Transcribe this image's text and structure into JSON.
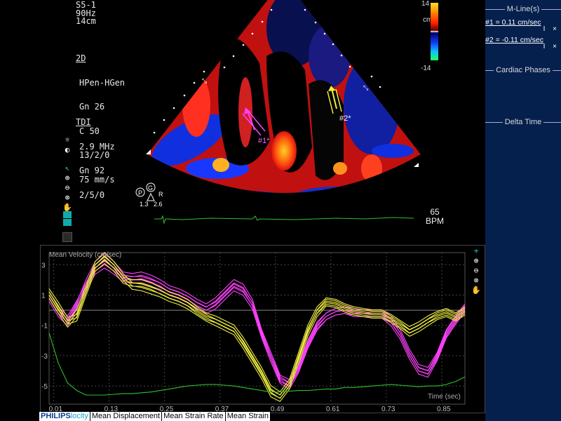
{
  "probe": {
    "transducer": "S5-1",
    "frame_rate": "90Hz",
    "depth": "14cm"
  },
  "twod": {
    "header": "2D",
    "mode": "HPen-HGen",
    "gain": "Gn 26",
    "compression": "C 50",
    "persist": "13/2/0",
    "sweep": "75 mm/s"
  },
  "tdi": {
    "header": "TDI",
    "freq": "2.9 MHz",
    "gain": "Gn 92",
    "filter": "2/5/0"
  },
  "color_scale": {
    "unit": "cm/s",
    "max": "14",
    "min": "-14"
  },
  "image_labels": {
    "roi1": "#1*",
    "roi2": "#2*"
  },
  "pgr": {
    "p": "P",
    "g": "G",
    "r": "R",
    "val1": "1.3",
    "val2": "2.6"
  },
  "heart_rate": {
    "value": "65",
    "unit": "BPM"
  },
  "tools": [
    {
      "name": "brightness-icon",
      "glyph": "☼"
    },
    {
      "name": "contrast-icon",
      "glyph": "◐"
    },
    {
      "name": "cursor-arrow-icon",
      "glyph": "↖"
    },
    {
      "name": "zoom-in-icon",
      "glyph": "⊕"
    },
    {
      "name": "zoom-out-icon",
      "glyph": "⊖"
    },
    {
      "name": "zoom-reset-icon",
      "glyph": "⊗"
    },
    {
      "name": "pan-hand-icon",
      "glyph": "✋"
    }
  ],
  "right_panel": {
    "mline_header": "M-Line(s)",
    "mlines": [
      {
        "label": "#1 = 0.11 cm/sec",
        "ctrl": "I ×"
      },
      {
        "label": "#2 = -0.11 cm/sec",
        "ctrl": "I ×"
      }
    ],
    "cardiac_header": "Cardiac Phases",
    "delta_header": "Delta Time"
  },
  "graph_tools": [
    "+",
    "⊕",
    "⊖",
    "⊗",
    "✋"
  ],
  "logo": {
    "brand": "PHILIPS",
    "product": "locity"
  },
  "tabs": [
    "Mean Displacement",
    "Mean Strain Rate",
    "Mean Strain"
  ],
  "chart_data": {
    "type": "line",
    "ylabel": "Mean Velocity (cm/sec)",
    "xlabel": "Time (sec)",
    "xlim": [
      0.0,
      0.9
    ],
    "ylim": [
      -6.2,
      3.8
    ],
    "x_ticks": [
      "0.01",
      "0.13",
      "0.25",
      "0.37",
      "0.49",
      "0.61",
      "0.73",
      "0.85"
    ],
    "y_ticks": [
      "3",
      "1",
      "-1",
      "-3",
      "-5"
    ],
    "colors": {
      "roi1": "#ff40ff",
      "roi2": "#f0f040",
      "ecg": "#30c030"
    },
    "x": [
      0.0,
      0.02,
      0.04,
      0.06,
      0.08,
      0.1,
      0.12,
      0.14,
      0.16,
      0.18,
      0.2,
      0.22,
      0.24,
      0.26,
      0.28,
      0.3,
      0.32,
      0.34,
      0.36,
      0.38,
      0.4,
      0.42,
      0.44,
      0.46,
      0.48,
      0.5,
      0.52,
      0.54,
      0.56,
      0.58,
      0.6,
      0.62,
      0.64,
      0.66,
      0.68,
      0.7,
      0.72,
      0.74,
      0.76,
      0.78,
      0.8,
      0.82,
      0.84,
      0.86,
      0.88,
      0.9
    ],
    "series": [
      {
        "values": [
          0.8,
          -0.2,
          -0.8,
          0.3,
          1.8,
          3.0,
          3.5,
          3.0,
          2.3,
          2.2,
          2.3,
          2.1,
          1.8,
          1.4,
          1.2,
          0.9,
          0.5,
          0.2,
          0.6,
          1.2,
          1.8,
          1.5,
          0.5,
          -1.5,
          -3.0,
          -4.5,
          -4.8,
          -3.8,
          -2.2,
          -1.0,
          -0.4,
          -0.1,
          0.0,
          -0.1,
          -0.2,
          -0.2,
          -0.2,
          -0.6,
          -1.5,
          -2.8,
          -3.8,
          -4.0,
          -3.0,
          -1.5,
          -0.6,
          0.2
        ]
      },
      {
        "values": [
          1.0,
          0.0,
          -0.6,
          0.4,
          1.6,
          2.6,
          3.0,
          2.6,
          2.1,
          2.0,
          2.0,
          1.8,
          1.6,
          1.2,
          1.0,
          0.7,
          0.3,
          0.0,
          0.3,
          0.9,
          1.5,
          1.2,
          0.3,
          -1.6,
          -3.2,
          -4.6,
          -5.0,
          -3.9,
          -2.3,
          -1.1,
          -0.4,
          -0.1,
          0.0,
          -0.2,
          -0.2,
          -0.3,
          -0.3,
          -0.8,
          -1.7,
          -3.0,
          -4.0,
          -4.2,
          -3.1,
          -1.6,
          -0.7,
          0.1
        ]
      },
      {
        "values": [
          1.2,
          0.3,
          -0.7,
          -0.5,
          1.2,
          2.8,
          3.3,
          2.8,
          2.0,
          1.8,
          1.8,
          1.6,
          1.3,
          1.0,
          0.8,
          0.5,
          0.0,
          -0.4,
          -0.6,
          -0.9,
          -1.2,
          -2.0,
          -3.0,
          -4.0,
          -5.2,
          -5.6,
          -4.8,
          -3.0,
          -1.2,
          0.0,
          0.6,
          0.5,
          0.2,
          0.0,
          -0.1,
          -0.2,
          -0.2,
          -0.5,
          -0.9,
          -1.3,
          -1.0,
          -0.6,
          -0.3,
          -0.1,
          -0.4,
          0.0
        ]
      },
      {
        "values": [
          1.0,
          0.0,
          -0.9,
          -0.2,
          1.4,
          3.0,
          3.6,
          3.0,
          2.2,
          1.6,
          1.5,
          1.3,
          1.1,
          0.8,
          0.6,
          0.3,
          -0.1,
          -0.5,
          -0.8,
          -1.1,
          -1.4,
          -2.3,
          -3.3,
          -4.3,
          -5.5,
          -5.8,
          -5.0,
          -3.3,
          -1.5,
          -0.2,
          0.5,
          0.4,
          0.1,
          -0.1,
          -0.2,
          -0.3,
          -0.3,
          -0.6,
          -1.0,
          -1.5,
          -1.2,
          -0.8,
          -0.4,
          -0.2,
          -0.5,
          -0.1
        ]
      },
      {
        "values": [
          -1.5,
          -3.5,
          -4.8,
          -5.3,
          -5.6,
          -5.6,
          -5.6,
          -5.55,
          -5.5,
          -5.5,
          -5.45,
          -5.4,
          -5.3,
          -5.2,
          -5.1,
          -5.0,
          -4.95,
          -4.9,
          -4.9,
          -4.95,
          -5.0,
          -5.1,
          -5.2,
          -5.3,
          -5.4,
          -5.4,
          -5.35,
          -5.3,
          -5.3,
          -5.25,
          -5.2,
          -5.2,
          -5.1,
          -5.1,
          -5.05,
          -5.0,
          -4.95,
          -4.9,
          -4.95,
          -5.0,
          -5.05,
          -5.0,
          -5.0,
          -4.9,
          -4.7,
          -4.4
        ]
      }
    ]
  }
}
